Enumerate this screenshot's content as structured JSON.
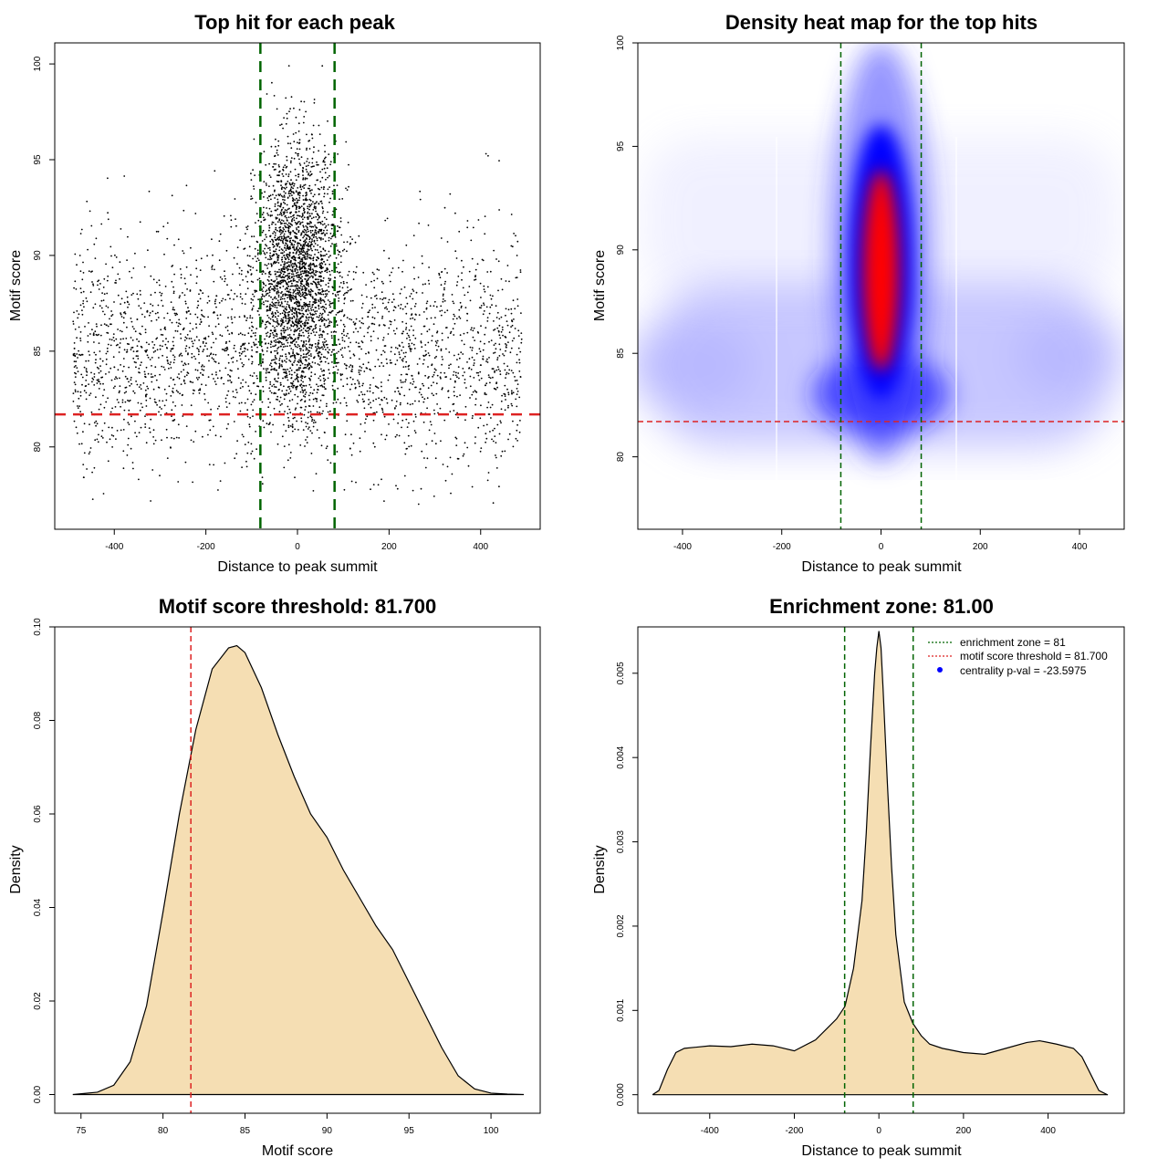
{
  "chart_data": [
    {
      "type": "scatter",
      "title": "Top hit for each peak",
      "xlabel": "Distance to peak summit",
      "ylabel": "Motif score",
      "xlim": [
        -530,
        530
      ],
      "ylim": [
        75.7,
        101.1
      ],
      "x_ticks": [
        -400,
        -200,
        0,
        200,
        400
      ],
      "y_ticks": [
        80,
        85,
        90,
        95,
        100
      ],
      "tick_labels_x": [
        "-400",
        "-200",
        "0",
        "200",
        "400"
      ],
      "tick_labels_y": [
        "80",
        "85",
        "90",
        "95",
        "100"
      ],
      "score_threshold": 81.7,
      "enrichment_zone": [
        -81,
        81
      ],
      "threshold_color": "#dd2222",
      "zone_color": "#006400",
      "point_color": "#000000",
      "distribution": {
        "background": {
          "x_range": [
            -490,
            490
          ],
          "score_mode": 84.5,
          "score_range": [
            77,
            96
          ]
        },
        "central": {
          "x_center": 0,
          "x_spread": 45,
          "score_center": 89,
          "score_range": [
            80,
            100
          ]
        }
      }
    },
    {
      "type": "heatmap",
      "title": "Density heat map for the top hits",
      "xlabel": "Distance to peak summit",
      "ylabel": "Motif score",
      "xlim": [
        -490,
        490
      ],
      "ylim": [
        76.5,
        100
      ],
      "x_ticks": [
        -400,
        -200,
        0,
        200,
        400
      ],
      "y_ticks": [
        80,
        85,
        90,
        95,
        100
      ],
      "tick_labels_x": [
        "-400",
        "-200",
        "0",
        "200",
        "400"
      ],
      "tick_labels_y": [
        "80",
        "85",
        "90",
        "95",
        "100"
      ],
      "score_threshold": 81.7,
      "enrichment_zone": [
        -81,
        81
      ],
      "colors": [
        "#ffffff",
        "#0000ff",
        "#ff0000"
      ],
      "peak": {
        "x": 0,
        "score": 89
      }
    },
    {
      "type": "area",
      "title": "Motif score threshold: 81.700",
      "xlabel": "Motif score",
      "ylabel": "Density",
      "xlim": [
        73.4,
        103
      ],
      "ylim": [
        -0.004,
        0.1
      ],
      "x_ticks": [
        75,
        80,
        85,
        90,
        95,
        100
      ],
      "y_ticks": [
        0,
        0.02,
        0.04,
        0.06,
        0.08,
        0.1
      ],
      "tick_labels_x": [
        "75",
        "80",
        "85",
        "90",
        "95",
        "100"
      ],
      "tick_labels_y": [
        "0.00",
        "0.02",
        "0.04",
        "0.06",
        "0.08",
        "0.10"
      ],
      "fill_color": "#f5deb3",
      "threshold": 81.7,
      "x": [
        74.5,
        76,
        77,
        78,
        79,
        80,
        81,
        82,
        83,
        84,
        84.5,
        85,
        86,
        87,
        88,
        89,
        90,
        91,
        92,
        93,
        94,
        95,
        96,
        97,
        98,
        99,
        100,
        101,
        102
      ],
      "y": [
        0,
        0.0005,
        0.002,
        0.007,
        0.019,
        0.039,
        0.06,
        0.078,
        0.091,
        0.0955,
        0.096,
        0.0945,
        0.087,
        0.077,
        0.068,
        0.06,
        0.055,
        0.048,
        0.042,
        0.036,
        0.031,
        0.024,
        0.017,
        0.01,
        0.004,
        0.0012,
        0.0003,
        0.0001,
        0
      ]
    },
    {
      "type": "area",
      "title": "Enrichment zone: 81.00",
      "xlabel": "Distance to peak summit",
      "ylabel": "Density",
      "xlim": [
        -570,
        580
      ],
      "ylim": [
        -0.00022,
        0.00555
      ],
      "x_ticks": [
        -400,
        -200,
        0,
        200,
        400
      ],
      "y_ticks": [
        0,
        0.001,
        0.002,
        0.003,
        0.004,
        0.005
      ],
      "tick_labels_x": [
        "-400",
        "-200",
        "0",
        "200",
        "400"
      ],
      "tick_labels_y": [
        "0.000",
        "0.001",
        "0.002",
        "0.003",
        "0.004",
        "0.005"
      ],
      "fill_color": "#f5deb3",
      "enrichment_zone": [
        -81,
        81
      ],
      "x": [
        -535,
        -520,
        -500,
        -480,
        -460,
        -400,
        -350,
        -300,
        -250,
        -200,
        -150,
        -120,
        -100,
        -80,
        -60,
        -40,
        -30,
        -20,
        -10,
        -5,
        0,
        5,
        10,
        20,
        30,
        40,
        60,
        80,
        100,
        120,
        150,
        200,
        250,
        300,
        350,
        380,
        420,
        460,
        480,
        500,
        520,
        540
      ],
      "y": [
        0,
        5e-05,
        0.0003,
        0.0005,
        0.00055,
        0.00058,
        0.00057,
        0.0006,
        0.00058,
        0.00052,
        0.00065,
        0.0008,
        0.0009,
        0.00105,
        0.0015,
        0.0023,
        0.0031,
        0.0041,
        0.005,
        0.0053,
        0.0055,
        0.0053,
        0.0048,
        0.0037,
        0.0027,
        0.0019,
        0.0011,
        0.00085,
        0.0007,
        0.0006,
        0.00055,
        0.0005,
        0.00048,
        0.00055,
        0.00062,
        0.00064,
        0.0006,
        0.00055,
        0.00045,
        0.00025,
        5e-05,
        0
      ]
    }
  ],
  "legend": {
    "zone": "enrichment zone = 81",
    "threshold": "motif score threshold = 81.700",
    "pval": "centrality p-val = -23.5975",
    "zone_color": "#006400",
    "threshold_color": "#dd2222",
    "pval_color": "#0000ff"
  }
}
